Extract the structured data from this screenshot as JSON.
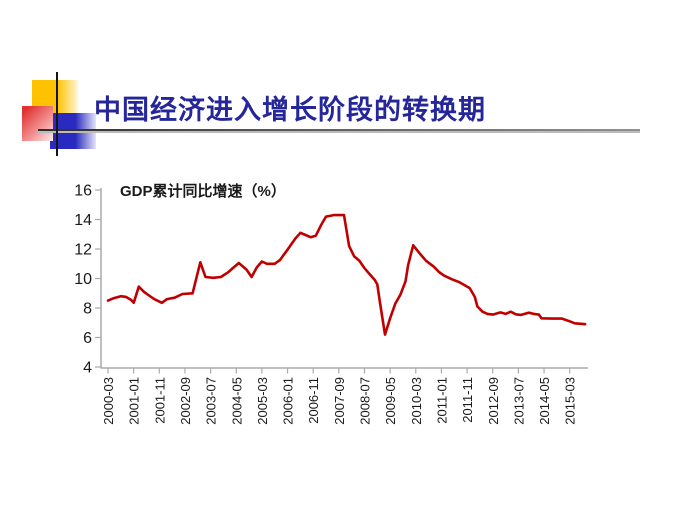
{
  "slide": {
    "title": "中国经济进入增长阶段的转换期",
    "title_color": "#26269B"
  },
  "decoration": {
    "yellow": "#FFC200",
    "red": "#E03030",
    "blue": "#2A2AC0",
    "rule_dark": "#2E2E2E",
    "rule_light": "#BBBBBB"
  },
  "chart_data": {
    "type": "line",
    "title": "GDP累计同比增速（%）",
    "xlabel": "",
    "ylabel": "",
    "ylim": [
      4,
      16
    ],
    "y_ticks": [
      16,
      14,
      12,
      10,
      8,
      6,
      4
    ],
    "grid": false,
    "legend": false,
    "line_color": "#C00000",
    "axis_color": "#ABABAB",
    "text_color": "#1A1A1A",
    "x_tick_labels": [
      "2000-03",
      "2001-01",
      "2001-11",
      "2002-09",
      "2003-07",
      "2004-05",
      "2005-03",
      "2006-01",
      "2006-11",
      "2007-09",
      "2008-07",
      "2009-05",
      "2010-03",
      "2011-01",
      "2011-11",
      "2012-09",
      "2013-07",
      "2014-05",
      "2015-03"
    ],
    "x_tick_interval_months": 10,
    "x_axis_note": "x values are months elapsed since 2000-03",
    "points": [
      [
        0,
        8.5
      ],
      [
        2,
        8.65
      ],
      [
        5,
        8.8
      ],
      [
        7,
        8.75
      ],
      [
        9,
        8.55
      ],
      [
        10,
        8.35
      ],
      [
        12,
        9.45
      ],
      [
        14,
        9.1
      ],
      [
        16,
        8.85
      ],
      [
        18,
        8.6
      ],
      [
        21,
        8.35
      ],
      [
        23,
        8.6
      ],
      [
        26,
        8.7
      ],
      [
        29,
        8.95
      ],
      [
        33,
        9.0
      ],
      [
        36,
        11.1
      ],
      [
        38,
        10.1
      ],
      [
        41,
        10.05
      ],
      [
        44,
        10.1
      ],
      [
        47,
        10.45
      ],
      [
        49,
        10.75
      ],
      [
        51,
        11.05
      ],
      [
        54,
        10.6
      ],
      [
        56,
        10.1
      ],
      [
        58,
        10.75
      ],
      [
        60,
        11.15
      ],
      [
        62,
        11.0
      ],
      [
        65,
        11.0
      ],
      [
        67,
        11.25
      ],
      [
        70,
        11.95
      ],
      [
        73,
        12.7
      ],
      [
        75,
        13.1
      ],
      [
        77,
        12.95
      ],
      [
        79,
        12.8
      ],
      [
        81,
        12.9
      ],
      [
        83,
        13.6
      ],
      [
        85,
        14.2
      ],
      [
        88,
        14.3
      ],
      [
        92,
        14.3
      ],
      [
        94,
        12.2
      ],
      [
        96,
        11.5
      ],
      [
        98,
        11.2
      ],
      [
        100,
        10.7
      ],
      [
        102,
        10.3
      ],
      [
        104,
        9.9
      ],
      [
        105,
        9.6
      ],
      [
        106,
        8.4
      ],
      [
        108,
        6.2
      ],
      [
        110,
        7.3
      ],
      [
        112,
        8.3
      ],
      [
        114,
        8.9
      ],
      [
        116,
        9.8
      ],
      [
        117,
        10.9
      ],
      [
        119,
        12.25
      ],
      [
        122,
        11.6
      ],
      [
        124,
        11.2
      ],
      [
        127,
        10.8
      ],
      [
        129,
        10.45
      ],
      [
        131,
        10.2
      ],
      [
        134,
        9.95
      ],
      [
        137,
        9.75
      ],
      [
        139,
        9.55
      ],
      [
        141,
        9.35
      ],
      [
        143,
        8.75
      ],
      [
        144,
        8.1
      ],
      [
        146,
        7.75
      ],
      [
        148,
        7.6
      ],
      [
        150,
        7.55
      ],
      [
        153,
        7.7
      ],
      [
        155,
        7.6
      ],
      [
        157,
        7.75
      ],
      [
        159,
        7.57
      ],
      [
        161,
        7.53
      ],
      [
        164,
        7.68
      ],
      [
        166,
        7.6
      ],
      [
        168,
        7.55
      ],
      [
        169,
        7.3
      ],
      [
        173,
        7.28
      ],
      [
        177,
        7.28
      ],
      [
        180,
        7.1
      ],
      [
        182,
        6.96
      ],
      [
        185,
        6.92
      ],
      [
        186,
        6.9
      ]
    ]
  }
}
